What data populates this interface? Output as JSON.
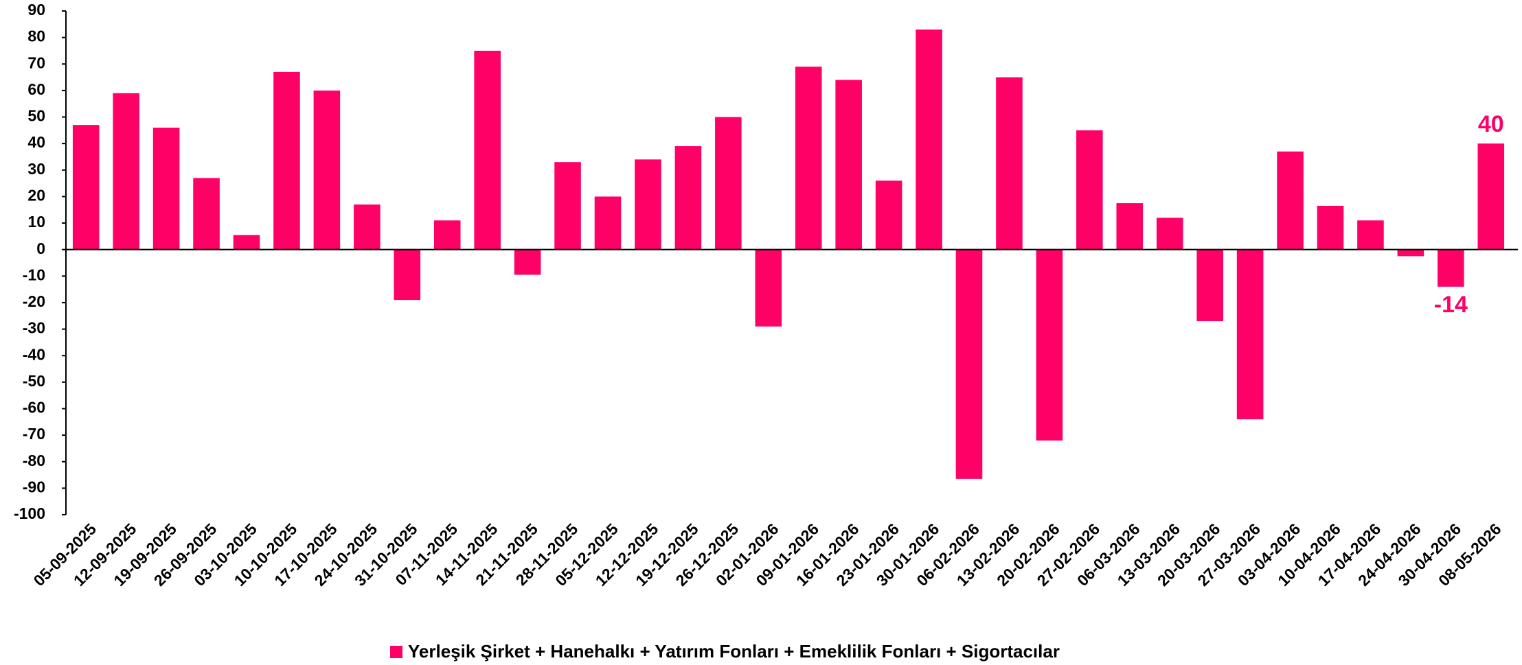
{
  "chart_data": {
    "type": "bar",
    "categories": [
      "05-09-2025",
      "12-09-2025",
      "19-09-2025",
      "26-09-2025",
      "03-10-2025",
      "10-10-2025",
      "17-10-2025",
      "24-10-2025",
      "31-10-2025",
      "07-11-2025",
      "14-11-2025",
      "21-11-2025",
      "28-11-2025",
      "05-12-2025",
      "12-12-2025",
      "19-12-2025",
      "26-12-2025",
      "02-01-2026",
      "09-01-2026",
      "16-01-2026",
      "23-01-2026",
      "30-01-2026",
      "06-02-2026",
      "13-02-2026",
      "20-02-2026",
      "27-02-2026",
      "06-03-2026",
      "13-03-2026",
      "20-03-2026",
      "27-03-2026",
      "03-04-2026",
      "10-04-2026",
      "17-04-2026",
      "24-04-2026",
      "30-04-2026",
      "08-05-2026"
    ],
    "series": [
      {
        "name": "Yerleşik Şirket + Hanehalkı + Yatırım Fonları + Emeklilik Fonları + Sigortacılar",
        "color": "#ff0066",
        "values": [
          47,
          59,
          46,
          27,
          5.5,
          67,
          60,
          17,
          -19,
          11,
          75,
          -9.5,
          33,
          20,
          34,
          39,
          50,
          -29,
          69,
          64,
          26,
          83,
          -86.5,
          65,
          -72,
          45,
          17.5,
          12,
          -27,
          -64,
          37,
          16.5,
          11,
          -2.5,
          -14,
          40
        ],
        "value_labels": [
          null,
          null,
          null,
          null,
          null,
          null,
          null,
          null,
          null,
          null,
          null,
          null,
          null,
          null,
          null,
          null,
          null,
          null,
          null,
          null,
          null,
          null,
          null,
          null,
          null,
          null,
          null,
          null,
          null,
          null,
          null,
          null,
          null,
          null,
          "-14",
          "40"
        ]
      }
    ],
    "ylim": [
      -100,
      90
    ],
    "yticks": [
      90,
      80,
      70,
      60,
      50,
      40,
      30,
      20,
      10,
      0,
      -10,
      -20,
      -30,
      -40,
      -50,
      -60,
      -70,
      -80,
      -90,
      -100
    ],
    "legend": "bottom"
  }
}
